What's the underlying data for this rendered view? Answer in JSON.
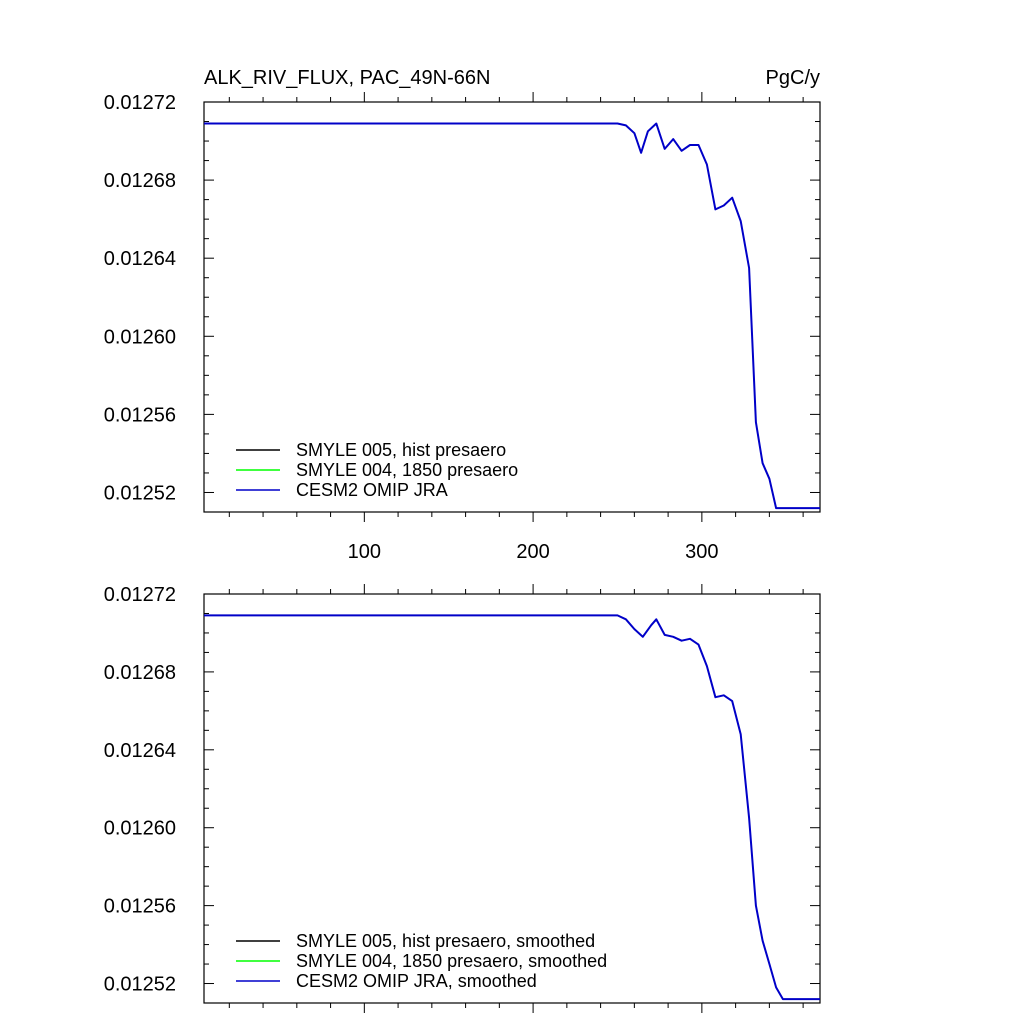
{
  "chart_data": [
    {
      "type": "line",
      "title": "ALK_RIV_FLUX, PAC_49N-66N",
      "units": "PgC/y",
      "xlim": [
        5,
        370
      ],
      "ylim": [
        0.01251,
        0.01272
      ],
      "xticks": [
        100,
        200,
        300
      ],
      "xtick_labels": [
        "100",
        "200",
        "300"
      ],
      "yticks": [
        0.01252,
        0.01256,
        0.0126,
        0.01264,
        0.01268,
        0.01272
      ],
      "ytick_labels": [
        "0.01252",
        "0.01256",
        "0.01260",
        "0.01264",
        "0.01268",
        "0.01272"
      ],
      "grid": false,
      "legend_position": "bottom-left",
      "series": [
        {
          "name": "SMYLE 005, hist presaero",
          "color": "#000000",
          "x": [],
          "y": []
        },
        {
          "name": "SMYLE 004, 1850 presaero",
          "color": "#00ff00",
          "x": [],
          "y": []
        },
        {
          "name": "CESM2 OMIP JRA",
          "color": "#0000c8",
          "x": [
            5,
            250,
            255,
            260,
            264,
            268,
            273,
            278,
            283,
            288,
            293,
            298,
            303,
            308,
            313,
            318,
            323,
            328,
            332,
            336,
            340,
            344,
            348,
            352,
            370
          ],
          "y": [
            0.012709,
            0.012709,
            0.012708,
            0.012704,
            0.012694,
            0.012705,
            0.012709,
            0.012696,
            0.012701,
            0.012695,
            0.012698,
            0.012698,
            0.012688,
            0.012665,
            0.012667,
            0.012671,
            0.012659,
            0.012635,
            0.012556,
            0.012535,
            0.012527,
            0.012512,
            0.012512,
            0.012512,
            0.012512
          ]
        }
      ]
    },
    {
      "type": "line",
      "title": "",
      "units": "",
      "xlim": [
        5,
        370
      ],
      "ylim": [
        0.01251,
        0.01272
      ],
      "xticks": [
        100,
        200,
        300
      ],
      "xtick_labels": [
        "",
        "",
        ""
      ],
      "yticks": [
        0.01252,
        0.01256,
        0.0126,
        0.01264,
        0.01268,
        0.01272
      ],
      "ytick_labels": [
        "0.01252",
        "0.01256",
        "0.01260",
        "0.01264",
        "0.01268",
        "0.01272"
      ],
      "grid": false,
      "legend_position": "bottom-left",
      "series": [
        {
          "name": "SMYLE 005, hist presaero, smoothed",
          "color": "#000000",
          "x": [],
          "y": []
        },
        {
          "name": "SMYLE 004, 1850 presaero, smoothed",
          "color": "#00ff00",
          "x": [],
          "y": []
        },
        {
          "name": "CESM2 OMIP JRA, smoothed",
          "color": "#0000c8",
          "x": [
            5,
            250,
            255,
            260,
            265,
            270,
            273,
            278,
            283,
            288,
            293,
            298,
            303,
            308,
            313,
            318,
            323,
            328,
            332,
            336,
            340,
            344,
            348,
            352,
            370
          ],
          "y": [
            0.012709,
            0.012709,
            0.012707,
            0.012702,
            0.012698,
            0.012704,
            0.012707,
            0.012699,
            0.012698,
            0.012696,
            0.012697,
            0.012694,
            0.012683,
            0.012667,
            0.012668,
            0.012665,
            0.012648,
            0.012605,
            0.01256,
            0.012542,
            0.01253,
            0.012518,
            0.012512,
            0.012512,
            0.012512
          ]
        }
      ]
    }
  ]
}
